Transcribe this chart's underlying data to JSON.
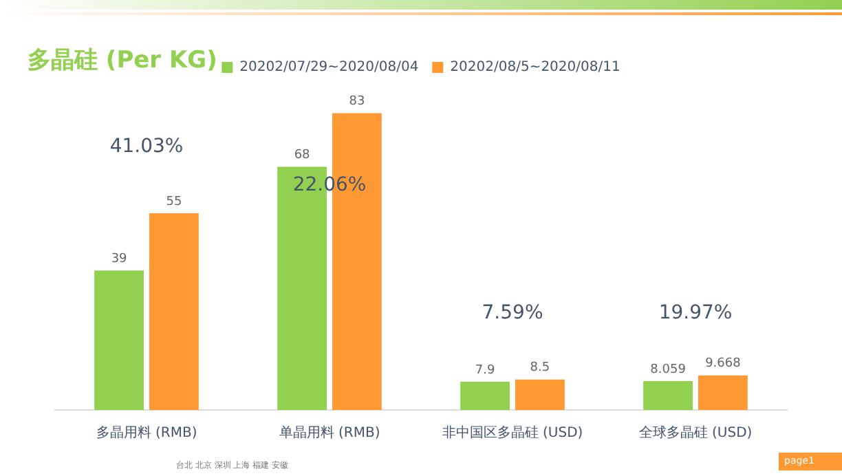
{
  "chart_data": {
    "type": "bar",
    "title": "多晶硅 (Per KG)",
    "categories": [
      "多晶用料 (RMB)",
      "单晶用料 (RMB)",
      "非中国区多晶硅 (USD)",
      "全球多晶硅 (USD)"
    ],
    "series": [
      {
        "name": "20202/07/29~2020/08/04",
        "color": "#92d050",
        "values": [
          39,
          68,
          7.9,
          8.059
        ]
      },
      {
        "name": "20202/08/5~2020/08/11",
        "color": "#ff9933",
        "values": [
          55,
          83,
          8.5,
          9.668
        ]
      }
    ],
    "data_labels": true,
    "legend": "top",
    "grid": false,
    "tick_labels": "x",
    "annotations": [
      "41.03%",
      "22.06%",
      "7.59%",
      "19.97%",
      "台北 北京 深圳 上海 福建 安徽",
      "page1"
    ]
  }
}
